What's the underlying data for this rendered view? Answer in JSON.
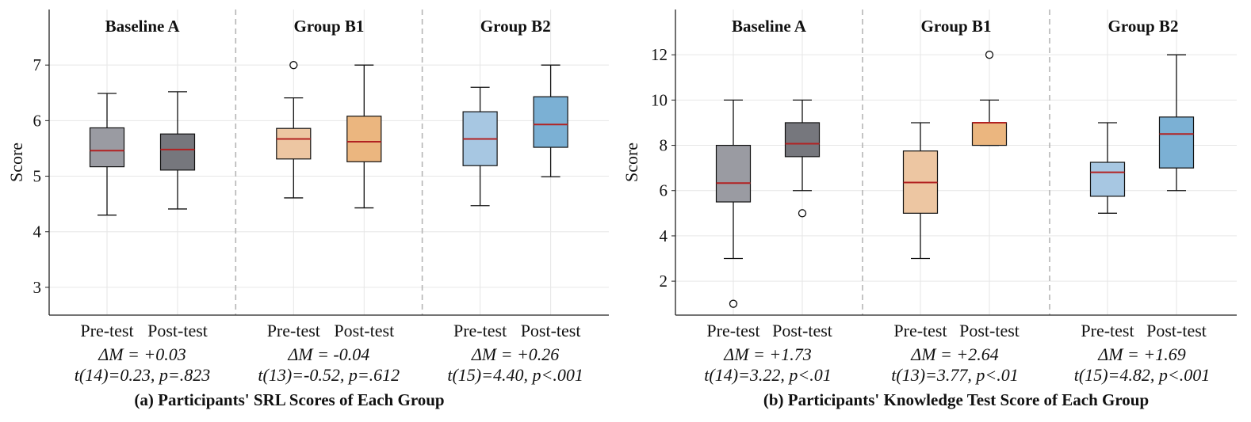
{
  "chart_data": [
    {
      "type": "box",
      "caption": "(a) Participants' SRL Scores of Each Group",
      "ylabel": "Score",
      "xlabel": "",
      "ylim": [
        2.5,
        8.0
      ],
      "yticks": [
        3,
        4,
        5,
        6,
        7
      ],
      "grid": true,
      "groups": [
        {
          "name": "Baseline A",
          "stat_delta": "ΔM = +0.03",
          "stat_test": "t(14)=0.23, p=.823",
          "boxes": [
            {
              "label": "Pre-test",
              "whisker_low": 4.3,
              "q1": 5.17,
              "median": 5.46,
              "q3": 5.87,
              "whisker_high": 6.49,
              "outliers": [],
              "color": "#9a9ba2"
            },
            {
              "label": "Post-test",
              "whisker_low": 4.41,
              "q1": 5.11,
              "median": 5.48,
              "q3": 5.76,
              "whisker_high": 6.52,
              "outliers": [],
              "color": "#76777d"
            }
          ]
        },
        {
          "name": "Group B1",
          "stat_delta": "ΔM = -0.04",
          "stat_test": "t(13)=-0.52, p=.612",
          "boxes": [
            {
              "label": "Pre-test",
              "whisker_low": 4.61,
              "q1": 5.31,
              "median": 5.67,
              "q3": 5.86,
              "whisker_high": 6.41,
              "outliers": [
                7.0
              ],
              "color": "#edc6a2"
            },
            {
              "label": "Post-test",
              "whisker_low": 4.43,
              "q1": 5.26,
              "median": 5.62,
              "q3": 6.08,
              "whisker_high": 7.0,
              "outliers": [],
              "color": "#ebb67f"
            }
          ]
        },
        {
          "name": "Group B2",
          "stat_delta": "ΔM = +0.26",
          "stat_test": "t(15)=4.40, p<.001",
          "boxes": [
            {
              "label": "Pre-test",
              "whisker_low": 4.47,
              "q1": 5.19,
              "median": 5.67,
              "q3": 6.16,
              "whisker_high": 6.6,
              "outliers": [],
              "color": "#a7c7e2"
            },
            {
              "label": "Post-test",
              "whisker_low": 4.99,
              "q1": 5.52,
              "median": 5.93,
              "q3": 6.43,
              "whisker_high": 7.0,
              "outliers": [],
              "color": "#7bb0d4"
            }
          ]
        }
      ]
    },
    {
      "type": "box",
      "caption": "(b) Participants' Knowledge Test Score of Each Group",
      "ylabel": "Score",
      "xlabel": "",
      "ylim": [
        0.5,
        14.0
      ],
      "yticks": [
        2,
        4,
        6,
        8,
        10,
        12
      ],
      "grid": true,
      "groups": [
        {
          "name": "Baseline A",
          "stat_delta": "ΔM = +1.73",
          "stat_test": "t(14)=3.22, p<.01",
          "boxes": [
            {
              "label": "Pre-test",
              "whisker_low": 3.0,
              "q1": 5.5,
              "median": 6.33,
              "q3": 8.0,
              "whisker_high": 10.0,
              "outliers": [
                1.0
              ],
              "color": "#9a9ba2"
            },
            {
              "label": "Post-test",
              "whisker_low": 6.0,
              "q1": 7.5,
              "median": 8.07,
              "q3": 9.0,
              "whisker_high": 10.0,
              "outliers": [
                5.0
              ],
              "color": "#76777d"
            }
          ]
        },
        {
          "name": "Group B1",
          "stat_delta": "ΔM = +2.64",
          "stat_test": "t(13)=3.77, p<.01",
          "boxes": [
            {
              "label": "Pre-test",
              "whisker_low": 3.0,
              "q1": 5.0,
              "median": 6.36,
              "q3": 7.75,
              "whisker_high": 9.0,
              "outliers": [],
              "color": "#edc6a2"
            },
            {
              "label": "Post-test",
              "whisker_low": 8.0,
              "q1": 8.0,
              "median": 9.0,
              "q3": 9.0,
              "whisker_high": 10.0,
              "outliers": [
                12.0
              ],
              "color": "#ebb67f"
            }
          ]
        },
        {
          "name": "Group B2",
          "stat_delta": "ΔM = +1.69",
          "stat_test": "t(15)=4.82, p<.001",
          "boxes": [
            {
              "label": "Pre-test",
              "whisker_low": 5.0,
              "q1": 5.75,
              "median": 6.81,
              "q3": 7.25,
              "whisker_high": 9.0,
              "outliers": [],
              "color": "#a7c7e2"
            },
            {
              "label": "Post-test",
              "whisker_low": 6.0,
              "q1": 7.0,
              "median": 8.5,
              "q3": 9.25,
              "whisker_high": 12.0,
              "outliers": [],
              "color": "#7bb0d4"
            }
          ]
        }
      ]
    }
  ],
  "style": {
    "median_color": "#b22222",
    "grid_color": "#e6e6e6",
    "separator_color": "#b5b5b5",
    "axis_color": "#222222"
  }
}
